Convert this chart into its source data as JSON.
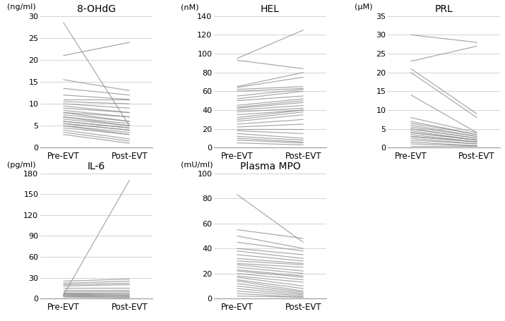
{
  "panels": [
    {
      "title": "8-OHdG",
      "unit": "(ng/ml)",
      "ylim": [
        0,
        30
      ],
      "yticks": [
        0,
        5,
        10,
        15,
        20,
        25,
        30
      ],
      "pre": [
        21,
        28.5,
        15.5,
        13.5,
        12,
        11,
        10.5,
        10,
        9.5,
        9,
        8.5,
        8,
        8,
        7.5,
        7,
        7,
        6.5,
        6,
        6,
        5.5,
        5.5,
        5,
        5,
        4.5,
        4,
        3.5,
        3
      ],
      "post": [
        24,
        5,
        13,
        12,
        11,
        11,
        10,
        9,
        8,
        8,
        7,
        7,
        6,
        6,
        5.5,
        5,
        5,
        4.5,
        4.5,
        4,
        4,
        3.5,
        3,
        3,
        2,
        1.5,
        1
      ]
    },
    {
      "title": "HEL",
      "unit": "(nM)",
      "ylim": [
        0,
        140
      ],
      "yticks": [
        0,
        20,
        40,
        60,
        80,
        100,
        120,
        140
      ],
      "pre": [
        95,
        93,
        65,
        64,
        62,
        60,
        55,
        52,
        50,
        45,
        43,
        42,
        40,
        38,
        35,
        32,
        30,
        28,
        25,
        22,
        20,
        18,
        15,
        12,
        10,
        8,
        5
      ],
      "post": [
        125,
        84,
        80,
        75,
        65,
        63,
        62,
        60,
        55,
        52,
        50,
        48,
        45,
        42,
        40,
        40,
        38,
        35,
        30,
        25,
        20,
        15,
        10,
        8,
        6,
        5,
        3
      ]
    },
    {
      "title": "PRL",
      "unit": "(μM)",
      "ylim": [
        0,
        35
      ],
      "yticks": [
        0,
        5,
        10,
        15,
        20,
        25,
        30,
        35
      ],
      "pre": [
        30,
        23,
        21,
        20,
        14,
        8,
        7,
        6.5,
        6,
        5.5,
        5,
        5,
        4.5,
        4,
        4,
        3.5,
        3,
        3,
        2.5,
        2,
        1.5,
        1,
        0.5
      ],
      "post": [
        28,
        27,
        9,
        8,
        4,
        4,
        3.5,
        3.5,
        3,
        3,
        2.5,
        2.5,
        2,
        2,
        2,
        1.5,
        1.5,
        1.5,
        1,
        1,
        0.5,
        0.5,
        0.5
      ]
    },
    {
      "title": "IL-6",
      "unit": "(pg/ml)",
      "ylim": [
        0,
        180
      ],
      "yticks": [
        0,
        30,
        60,
        90,
        120,
        150,
        180
      ],
      "pre": [
        5,
        25,
        22,
        20,
        18,
        15,
        12,
        10,
        8,
        7,
        6,
        5,
        4,
        3,
        2
      ],
      "post": [
        170,
        28,
        25,
        22,
        20,
        15,
        12,
        10,
        8,
        6,
        5,
        4,
        3,
        2,
        1
      ]
    },
    {
      "title": "Plasma MPO",
      "unit": "(mU/ml)",
      "ylim": [
        0,
        100
      ],
      "yticks": [
        0,
        20,
        40,
        60,
        80,
        100
      ],
      "pre": [
        83,
        55,
        50,
        45,
        40,
        38,
        35,
        32,
        30,
        28,
        27,
        25,
        23,
        22,
        20,
        18,
        17,
        15,
        14,
        12,
        10,
        8,
        6,
        4,
        2
      ],
      "post": [
        45,
        48,
        40,
        38,
        35,
        32,
        30,
        28,
        27,
        25,
        22,
        20,
        18,
        17,
        15,
        13,
        10,
        8,
        6,
        5,
        4,
        3,
        2,
        1,
        1
      ]
    }
  ],
  "line_color": "#888888",
  "line_alpha": 0.75,
  "line_width": 0.85,
  "bg_color": "#ffffff",
  "grid_color": "#cccccc",
  "xlabel_pre": "Pre-EVT",
  "xlabel_post": "Post-EVT"
}
